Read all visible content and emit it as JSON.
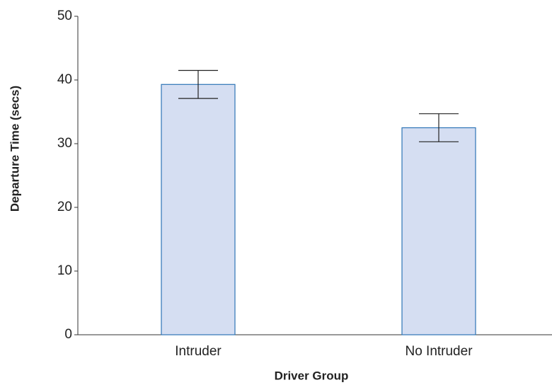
{
  "chart_data": {
    "type": "bar",
    "x_label": "Driver Group",
    "y_label": "Departure Time (secs)",
    "categories": [
      "Intruder",
      "No Intruder"
    ],
    "values": [
      39.3,
      32.5
    ],
    "errors": [
      2.2,
      2.2
    ],
    "color": "#d5def2",
    "edge_color": "#2e75b6",
    "ylim": [
      0,
      50
    ],
    "yticks": [
      0,
      10,
      20,
      30,
      40,
      50
    ],
    "grid": false
  }
}
